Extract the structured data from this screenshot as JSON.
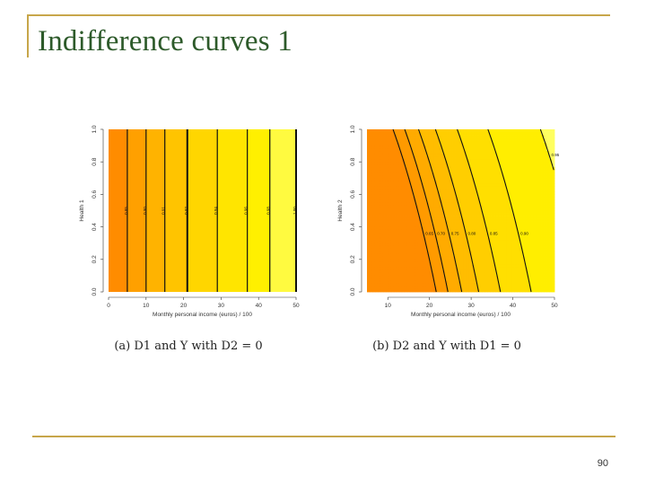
{
  "slide": {
    "title": "Indifference curves 1",
    "page_number": "90",
    "accent_color": "#c7a64a",
    "title_color": "#2d5a2a"
  },
  "chart_data": [
    {
      "type": "contour",
      "caption": "(a)  D1  and  Y  with  D2 = 0",
      "xlabel": "Monthly personal income (euros) / 100",
      "ylabel": "Health 1",
      "xlim": [
        0,
        50
      ],
      "ylim": [
        0,
        1
      ],
      "xticks": [
        0,
        10,
        20,
        30,
        40,
        50
      ],
      "yticks": [
        0.0,
        0.2,
        0.4,
        0.6,
        0.8,
        1.0
      ],
      "xtick_labels": [
        "0",
        "10",
        "20",
        "30",
        "40",
        "50"
      ],
      "ytick_labels": [
        "0.0",
        "0.2",
        "0.4",
        "0.6",
        "0.8",
        "1.0"
      ],
      "contour_lines_x": [
        5,
        10,
        15,
        21,
        29,
        37,
        43,
        50
      ],
      "contour_labels": [
        "0.85",
        "0.90",
        "0.91",
        "0.92",
        "0.94",
        "0.96",
        "0.98",
        "1.00"
      ],
      "fill_colors": [
        "#ff8c00",
        "#ffa000",
        "#ffb300",
        "#ffc400",
        "#ffd600",
        "#ffe500",
        "#fff000",
        "#fffa40"
      ]
    },
    {
      "type": "contour",
      "caption": "(b)  D2  and  Y  with  D1 = 0",
      "xlabel": "Monthly personal income (euros) / 100",
      "ylabel": "Health 2",
      "xlim": [
        5,
        50
      ],
      "ylim": [
        0,
        1
      ],
      "xticks": [
        10,
        20,
        30,
        40,
        50
      ],
      "yticks": [
        0.0,
        0.2,
        0.4,
        0.6,
        0.8,
        1.0
      ],
      "xtick_labels": [
        "10",
        "20",
        "30",
        "40",
        "50"
      ],
      "ytick_labels": [
        "0.0",
        "0.2",
        "0.4",
        "0.6",
        "0.8",
        "1.0"
      ],
      "contour_levels": [
        0.65,
        0.7,
        0.75,
        0.8,
        0.85,
        0.9,
        0.95
      ],
      "contour_labels": [
        "0.65",
        "0.70",
        "0.75",
        "0.80",
        "0.85",
        "0.90",
        "0.95"
      ],
      "fill_colors": [
        "#ff8c00",
        "#ff9a00",
        "#ffab00",
        "#ffbd00",
        "#ffce00",
        "#ffdf00",
        "#ffee00",
        "#ffff60"
      ]
    }
  ]
}
